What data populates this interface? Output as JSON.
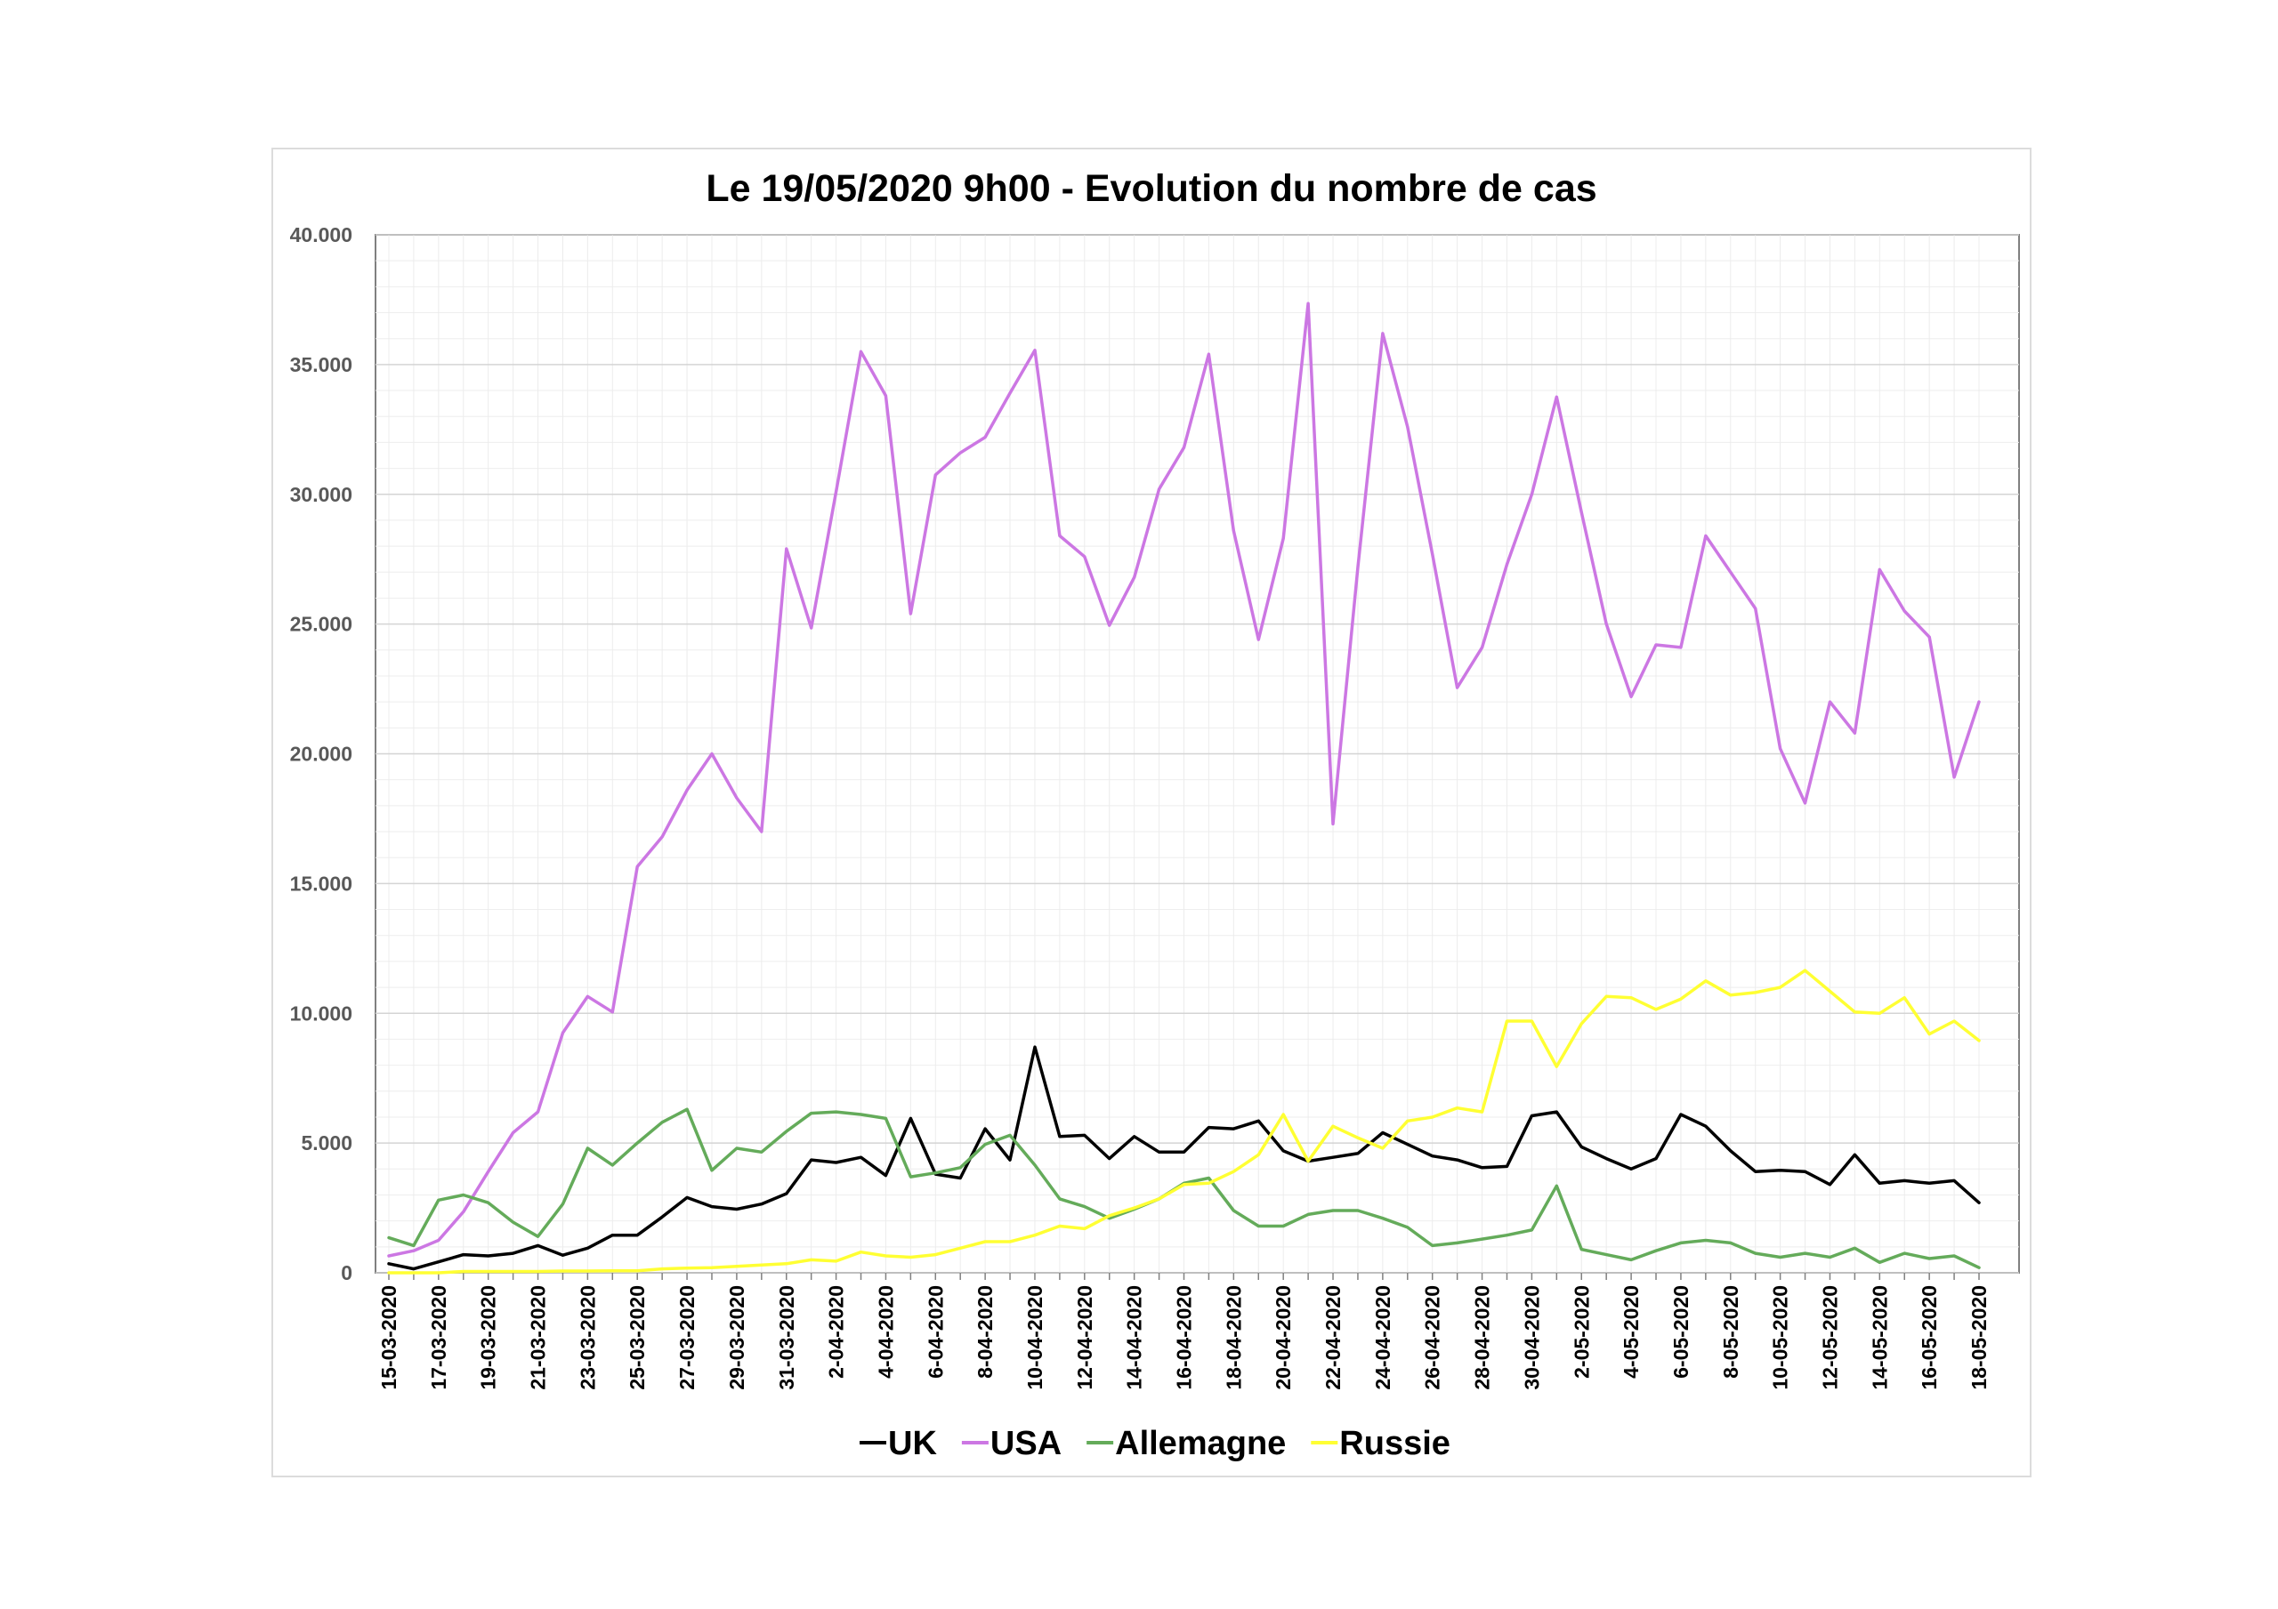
{
  "chart_data": {
    "type": "line",
    "title": "Le 19/05/2020 9h00 - Evolution du nombre de cas",
    "xlabel": "",
    "ylabel": "",
    "ylim": [
      0,
      40000
    ],
    "y_ticks": [
      {
        "value": 0,
        "label": "0"
      },
      {
        "value": 5000,
        "label": "5.000"
      },
      {
        "value": 10000,
        "label": "10.000"
      },
      {
        "value": 15000,
        "label": "15.000"
      },
      {
        "value": 20000,
        "label": "20.000"
      },
      {
        "value": 25000,
        "label": "25.000"
      },
      {
        "value": 30000,
        "label": "30.000"
      },
      {
        "value": 35000,
        "label": "35.000"
      },
      {
        "value": 40000,
        "label": "40.000"
      }
    ],
    "grid": true,
    "legend_position": "bottom",
    "x": [
      "15-03-2020",
      "16-03-2020",
      "17-03-2020",
      "18-03-2020",
      "19-03-2020",
      "20-03-2020",
      "21-03-2020",
      "22-03-2020",
      "23-03-2020",
      "24-03-2020",
      "25-03-2020",
      "26-03-2020",
      "27-03-2020",
      "28-03-2020",
      "29-03-2020",
      "30-03-2020",
      "31-03-2020",
      "1-04-2020",
      "2-04-2020",
      "3-04-2020",
      "4-04-2020",
      "5-04-2020",
      "6-04-2020",
      "7-04-2020",
      "8-04-2020",
      "9-04-2020",
      "10-04-2020",
      "11-04-2020",
      "12-04-2020",
      "13-04-2020",
      "14-04-2020",
      "15-04-2020",
      "16-04-2020",
      "17-04-2020",
      "18-04-2020",
      "19-04-2020",
      "20-04-2020",
      "21-04-2020",
      "22-04-2020",
      "23-04-2020",
      "24-04-2020",
      "25-04-2020",
      "26-04-2020",
      "27-04-2020",
      "28-04-2020",
      "29-04-2020",
      "30-04-2020",
      "1-05-2020",
      "2-05-2020",
      "3-05-2020",
      "4-05-2020",
      "5-05-2020",
      "6-05-2020",
      "7-05-2020",
      "8-05-2020",
      "9-05-2020",
      "10-05-2020",
      "11-05-2020",
      "12-05-2020",
      "13-05-2020",
      "14-05-2020",
      "15-05-2020",
      "16-05-2020",
      "17-05-2020",
      "18-05-2020"
    ],
    "x_tick_labels": [
      "15-03-2020",
      "17-03-2020",
      "19-03-2020",
      "21-03-2020",
      "23-03-2020",
      "25-03-2020",
      "27-03-2020",
      "29-03-2020",
      "31-03-2020",
      "2-04-2020",
      "4-04-2020",
      "6-04-2020",
      "8-04-2020",
      "10-04-2020",
      "12-04-2020",
      "14-04-2020",
      "16-04-2020",
      "18-04-2020",
      "20-04-2020",
      "22-04-2020",
      "24-04-2020",
      "26-04-2020",
      "28-04-2020",
      "30-04-2020",
      "2-05-2020",
      "4-05-2020",
      "6-05-2020",
      "8-05-2020",
      "10-05-2020",
      "12-05-2020",
      "14-05-2020",
      "16-05-2020",
      "18-05-2020"
    ],
    "series": [
      {
        "name": "UK",
        "color": "#000000",
        "values": [
          350,
          150,
          420,
          700,
          650,
          750,
          1050,
          680,
          950,
          1450,
          1450,
          2150,
          2900,
          2550,
          2450,
          2650,
          3050,
          4350,
          4250,
          4450,
          3750,
          5950,
          3800,
          3650,
          5550,
          4350,
          8700,
          5250,
          5300,
          4400,
          5250,
          4650,
          4650,
          5600,
          5550,
          5850,
          4700,
          4300,
          4450,
          4600,
          5400,
          4950,
          4500,
          4350,
          4050,
          4100,
          6050,
          6200,
          4850,
          4400,
          4000,
          4400,
          6100,
          5650,
          4700,
          3900,
          3950,
          3900,
          3400,
          4550,
          3450,
          3550,
          3450,
          3550,
          2700
        ]
      },
      {
        "name": "USA",
        "color": "#cc77e3",
        "values": [
          650,
          850,
          1250,
          2350,
          3900,
          5400,
          6200,
          9250,
          10650,
          10050,
          15650,
          16800,
          18600,
          20000,
          18300,
          17000,
          27900,
          24850,
          30100,
          35500,
          33800,
          25400,
          30750,
          31600,
          32200,
          33900,
          35550,
          28400,
          27600,
          24950,
          26800,
          30200,
          31800,
          35400,
          28600,
          24400,
          28300,
          37350,
          17300,
          27200,
          36200,
          32600,
          27700,
          22550,
          24100,
          27300,
          30000,
          33750,
          29300,
          25000,
          22200,
          24200,
          24100,
          28400,
          27000,
          25600,
          20200,
          18100,
          22000,
          20800,
          27100,
          25500,
          24500,
          19100,
          22000
        ]
      },
      {
        "name": "Allemagne",
        "color": "#64ab5a",
        "values": [
          1350,
          1050,
          2800,
          3000,
          2700,
          1950,
          1400,
          2650,
          4800,
          4150,
          5000,
          5800,
          6300,
          3950,
          4800,
          4650,
          5450,
          6150,
          6200,
          6100,
          5950,
          3700,
          3850,
          4050,
          4950,
          5300,
          4150,
          2850,
          2550,
          2100,
          2450,
          2850,
          3450,
          3650,
          2400,
          1800,
          1800,
          2250,
          2400,
          2400,
          2100,
          1750,
          1050,
          1150,
          1300,
          1450,
          1650,
          3350,
          900,
          700,
          500,
          850,
          1150,
          1250,
          1150,
          750,
          600,
          750,
          600,
          950,
          400,
          750,
          550,
          650,
          200
        ]
      },
      {
        "name": "Russie",
        "color": "#ffff33",
        "values": [
          0,
          0,
          0,
          50,
          50,
          50,
          50,
          70,
          70,
          80,
          80,
          150,
          180,
          200,
          250,
          300,
          350,
          500,
          450,
          800,
          650,
          600,
          700,
          950,
          1200,
          1200,
          1450,
          1800,
          1700,
          2200,
          2500,
          2850,
          3400,
          3450,
          3900,
          4550,
          6100,
          4300,
          5650,
          5200,
          4800,
          5850,
          6000,
          6350,
          6200,
          9700,
          9700,
          7950,
          9600,
          10650,
          10600,
          10150,
          10550,
          11250,
          10700,
          10800,
          11000,
          11650,
          10850,
          10050,
          10000,
          10600,
          9200,
          9700,
          8950
        ]
      }
    ]
  }
}
